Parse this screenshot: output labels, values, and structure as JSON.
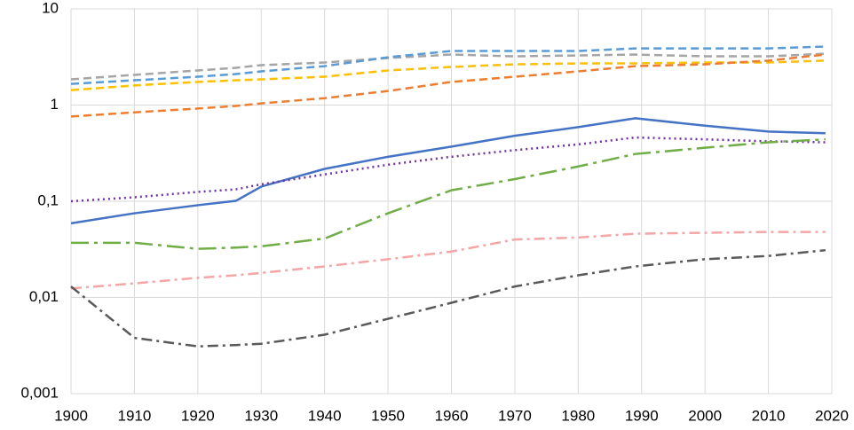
{
  "chart_data": {
    "type": "line",
    "log_y": true,
    "grid": true,
    "x": [
      1900,
      1910,
      1920,
      1926,
      1930,
      1940,
      1950,
      1960,
      1970,
      1980,
      1989,
      2000,
      2010,
      2019
    ],
    "xlim": [
      1900,
      2020
    ],
    "xticks": [
      1900,
      1910,
      1920,
      1930,
      1940,
      1950,
      1960,
      1970,
      1980,
      1990,
      2000,
      2010,
      2020
    ],
    "ylim": [
      0.001,
      10
    ],
    "yticks": [
      {
        "value": 0.001,
        "label": "0,001"
      },
      {
        "value": 0.01,
        "label": "0,01"
      },
      {
        "value": 0.1,
        "label": "0,1"
      },
      1,
      10
    ],
    "series": [
      {
        "color": "#a5a5a5",
        "dash": "dashed",
        "values": [
          1.85,
          2.06,
          2.29,
          2.44,
          2.6,
          2.77,
          3.08,
          3.35,
          3.21,
          3.28,
          3.35,
          3.21,
          3.21,
          3.42
        ]
      },
      {
        "color": "#5b9bd5",
        "dash": "dashed",
        "values": [
          1.66,
          1.81,
          1.97,
          2.1,
          2.24,
          2.54,
          3.14,
          3.65,
          3.65,
          3.65,
          3.88,
          3.88,
          3.88,
          4.06
        ]
      },
      {
        "color": "#ffc000",
        "dash": "dashed",
        "values": [
          1.43,
          1.6,
          1.74,
          1.81,
          1.85,
          1.97,
          2.29,
          2.49,
          2.65,
          2.71,
          2.71,
          2.77,
          2.77,
          2.9
        ]
      },
      {
        "color": "#ed7d31",
        "dash": "dashed",
        "values": [
          0.76,
          0.84,
          0.92,
          0.98,
          1.04,
          1.18,
          1.4,
          1.74,
          1.97,
          2.24,
          2.54,
          2.65,
          2.9,
          3.35
        ]
      },
      {
        "color": "#4472c4",
        "dash": "solid",
        "values": [
          0.059,
          0.075,
          0.091,
          0.101,
          0.142,
          0.217,
          0.29,
          0.37,
          0.48,
          0.59,
          0.73,
          0.61,
          0.53,
          0.51
        ]
      },
      {
        "color": "#7030a0",
        "dash": "dotted",
        "values": [
          0.1,
          0.11,
          0.125,
          0.133,
          0.15,
          0.19,
          0.24,
          0.29,
          0.34,
          0.39,
          0.46,
          0.44,
          0.42,
          0.41
        ]
      },
      {
        "color": "#70ad47",
        "dash": "longdashdot",
        "values": [
          0.037,
          0.037,
          0.032,
          0.033,
          0.034,
          0.041,
          0.075,
          0.13,
          0.17,
          0.23,
          0.31,
          0.36,
          0.41,
          0.44
        ]
      },
      {
        "color": "#f4a6a6",
        "dash": "dashdot",
        "values": [
          0.0124,
          0.014,
          0.016,
          0.017,
          0.018,
          0.021,
          0.025,
          0.03,
          0.04,
          0.042,
          0.046,
          0.047,
          0.048,
          0.048
        ]
      },
      {
        "color": "#595959",
        "dash": "dashdot",
        "values": [
          0.013,
          0.0038,
          0.0031,
          0.0032,
          0.0033,
          0.0041,
          0.006,
          0.0088,
          0.013,
          0.017,
          0.021,
          0.025,
          0.027,
          0.031
        ]
      }
    ]
  }
}
